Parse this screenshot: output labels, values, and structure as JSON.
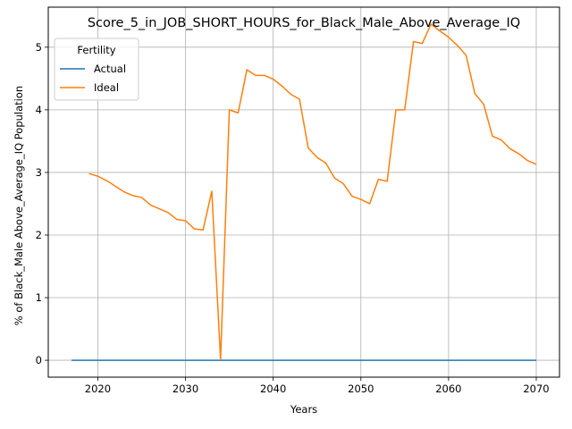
{
  "chart_data": {
    "type": "line",
    "title": "Score_5_in_JOB_SHORT_HOURS_for_Black_Male_Above_Average_IQ",
    "xlabel": "Years",
    "ylabel": "% of Black_Male Above_Average_IQ Population",
    "xlim": [
      2014.35,
      2072.65
    ],
    "ylim": [
      -0.27,
      5.64
    ],
    "x_ticks": [
      2020,
      2030,
      2040,
      2050,
      2060,
      2070
    ],
    "y_ticks": [
      0,
      1,
      2,
      3,
      4,
      5
    ],
    "grid": true,
    "legend": {
      "title": "Fertility",
      "position": "top-left"
    },
    "series": [
      {
        "name": "Actual",
        "color": "#1f77b4",
        "x": [
          2017,
          2070
        ],
        "y": [
          0,
          0
        ]
      },
      {
        "name": "Ideal",
        "color": "#ff7f0e",
        "x": [
          2019,
          2020,
          2021,
          2022,
          2023,
          2024,
          2025,
          2026,
          2027,
          2028,
          2029,
          2030,
          2031,
          2032,
          2033,
          2034,
          2035,
          2036,
          2037,
          2038,
          2039,
          2040,
          2041,
          2042,
          2043,
          2044,
          2045,
          2046,
          2047,
          2048,
          2049,
          2050,
          2051,
          2052,
          2053,
          2054,
          2055,
          2056,
          2057,
          2058,
          2059,
          2060,
          2061,
          2062,
          2063,
          2064,
          2065,
          2066,
          2067,
          2068,
          2069,
          2070
        ],
        "y": [
          2.98,
          2.94,
          2.87,
          2.78,
          2.69,
          2.63,
          2.6,
          2.48,
          2.42,
          2.36,
          2.25,
          2.23,
          2.1,
          2.08,
          2.7,
          0.01,
          4.0,
          3.95,
          4.64,
          4.55,
          4.55,
          4.49,
          4.38,
          4.25,
          4.17,
          3.39,
          3.24,
          3.15,
          2.91,
          2.82,
          2.62,
          2.57,
          2.5,
          2.89,
          2.86,
          4.0,
          4.0,
          5.09,
          5.06,
          5.37,
          5.26,
          5.16,
          5.03,
          4.87,
          4.26,
          4.09,
          3.58,
          3.52,
          3.38,
          3.3,
          3.19,
          3.13
        ]
      }
    ]
  }
}
